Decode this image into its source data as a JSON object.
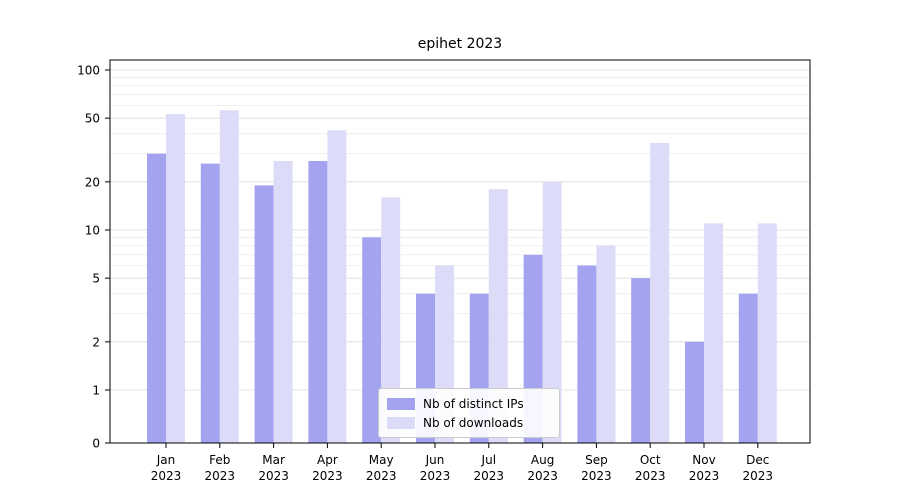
{
  "chart_data": {
    "type": "bar",
    "title": "epihet 2023",
    "categories": [
      "Jan",
      "Feb",
      "Mar",
      "Apr",
      "May",
      "Jun",
      "Jul",
      "Aug",
      "Sep",
      "Oct",
      "Nov",
      "Dec"
    ],
    "year": "2023",
    "series": [
      {
        "name": "Nb of distinct IPs",
        "color": "#a3a3ef",
        "values": [
          30,
          26,
          19,
          27,
          9,
          4,
          4,
          7,
          6,
          5,
          2,
          4
        ]
      },
      {
        "name": "Nb of downloads",
        "color": "#dcdcf8",
        "values": [
          53,
          56,
          27,
          42,
          16,
          6,
          18,
          20,
          8,
          35,
          11,
          11
        ]
      }
    ],
    "yscale": "symlog",
    "yticks": [
      0,
      1,
      2,
      5,
      10,
      20,
      50,
      100
    ],
    "ylim": [
      0,
      100
    ],
    "grid": "horizontal",
    "legend_position": "lower center"
  },
  "colors": {
    "grid_major": "#dcdcdc",
    "grid_minor": "#ececec",
    "axis": "#000000"
  }
}
